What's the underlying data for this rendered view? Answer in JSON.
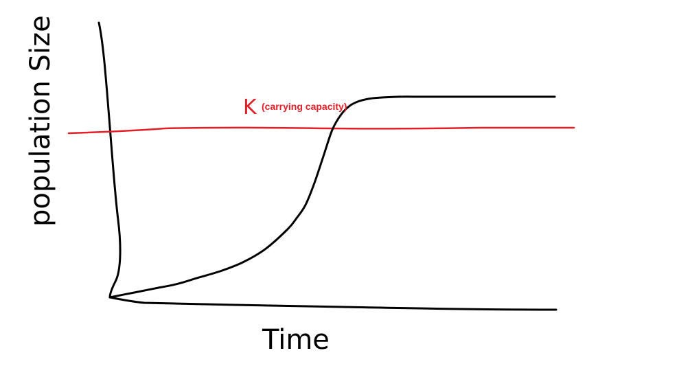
{
  "chart_data": {
    "type": "line",
    "xlabel": "Time",
    "ylabel": "population Size",
    "carrying_capacity": {
      "symbol": "K",
      "label": "(carrying capacity)",
      "color": "#e41e26"
    },
    "series": [
      {
        "color": "#000000",
        "style": "logistic growth curve",
        "x": [
          0,
          5,
          10,
          15,
          20,
          25,
          30,
          35,
          40,
          42,
          44,
          46,
          48,
          50,
          52,
          54,
          56,
          58,
          60,
          65,
          70,
          75,
          80,
          85,
          90,
          95,
          100
        ],
        "y": [
          0,
          2,
          4,
          6,
          9,
          12,
          16,
          22,
          31,
          36,
          42,
          52,
          64,
          76,
          83,
          87,
          89,
          90,
          90.5,
          91,
          91,
          91,
          91,
          91,
          91,
          91,
          91
        ]
      }
    ],
    "xlim": [
      0,
      100
    ],
    "ylim": [
      0,
      100
    ],
    "grid": false,
    "legend": "none"
  }
}
